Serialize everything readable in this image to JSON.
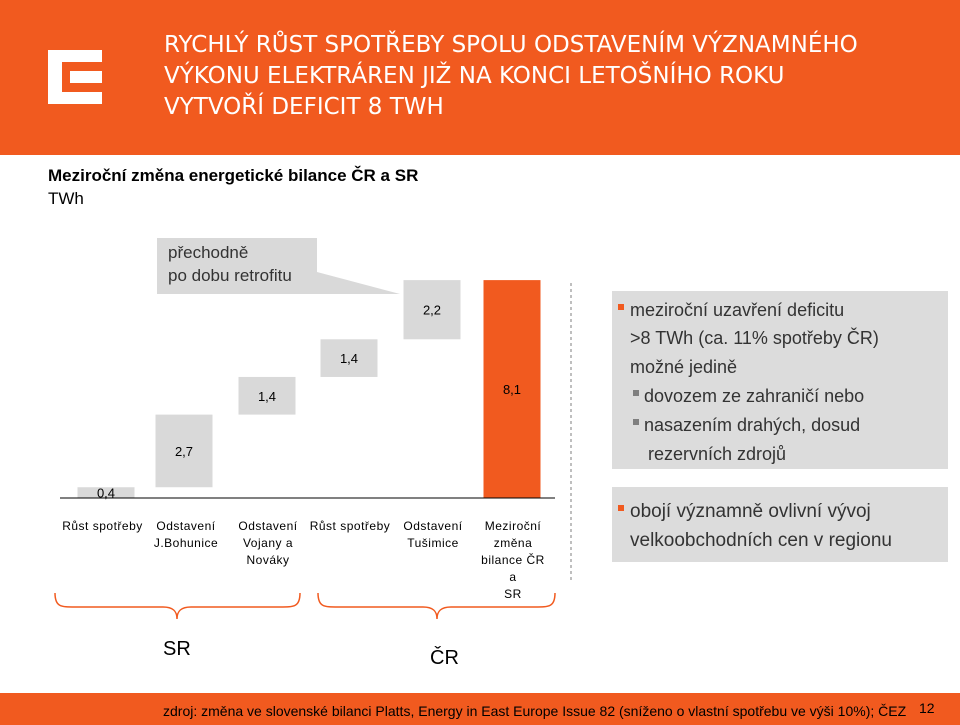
{
  "header": {
    "title_lines": [
      "RYCHLÝ RŮST SPOTŘEBY SPOLU ODSTAVENÍM VÝZNAMNÉHO",
      "VÝKONU ELEKTRÁREN JIŽ NA KONCI LETOŠNÍHO ROKU",
      "VYTVOŘÍ DEFICIT 8 TWH"
    ],
    "brand_color": "#f15a1f",
    "logo_icon": "cez-logo-icon"
  },
  "subtitle": "Meziroční změna energetické bilance ČR a SR",
  "unit": "TWh",
  "callout": {
    "line1": "přechodně",
    "line2": "po dobu retrofitu"
  },
  "chart_data": {
    "type": "bar",
    "subtype": "waterfall",
    "categories": [
      "Růst spotřeby",
      "Odstavení J.Bohunice",
      "Odstavení Vojany a Nováky",
      "Růst spotřeby",
      "Odstavení Tušimice",
      "Meziroční změna bilance ČR a SR"
    ],
    "category_lines": [
      [
        "Růst spotřeby"
      ],
      [
        "Odstavení",
        "J.Bohunice"
      ],
      [
        "Odstavení",
        "Vojany a",
        "Nováky"
      ],
      [
        "Růst spotřeby"
      ],
      [
        "Odstavení",
        "Tušimice"
      ],
      [
        "Meziroční",
        "změna",
        "bilance ČR a",
        "SR"
      ]
    ],
    "values": [
      0.4,
      2.7,
      1.4,
      1.4,
      2.2,
      8.1
    ],
    "value_labels": [
      "0,4",
      "2,7",
      "1,4",
      "1,4",
      "2,2",
      "8,1"
    ],
    "bar_kind": [
      "step",
      "step",
      "step",
      "step",
      "step",
      "total"
    ],
    "colors": {
      "step": "#d9d9d9",
      "total": "#f15a1f"
    },
    "groups": [
      {
        "label": "SR",
        "categories": [
          0,
          1,
          2
        ]
      },
      {
        "label": "ČR",
        "categories": [
          3,
          4,
          5
        ]
      }
    ]
  },
  "panel1": {
    "main": "meziroční uzavření deficitu",
    "line2": ">8 TWh (ca. 11% spotřeby ČR)",
    "line3": "možné jedině",
    "sub1": "dovozem ze zahraničí nebo",
    "sub2": "nasazením drahých, dosud",
    "sub3": "rezervních zdrojů"
  },
  "panel2": {
    "line1": "obojí významně ovlivní vývoj",
    "line2": "velkoobchodních cen v regionu"
  },
  "footer": {
    "source": "zdroj: změna ve slovenské bilanci Platts, Energy in East Europe Issue 82 (sníženo o vlastní spotřebu ve výši 10%); ČEZ",
    "page": "12"
  }
}
